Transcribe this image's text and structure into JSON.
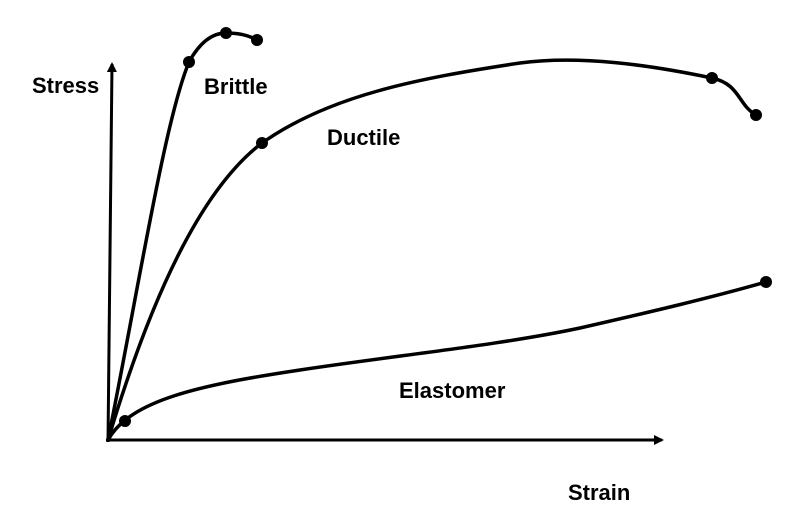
{
  "axes": {
    "y_label": "Stress",
    "x_label": "Strain"
  },
  "curves": [
    {
      "label": "Brittle"
    },
    {
      "label": "Ductile"
    },
    {
      "label": "Elastomer"
    }
  ],
  "colors": {
    "line": "#000000",
    "background": "#ffffff"
  }
}
